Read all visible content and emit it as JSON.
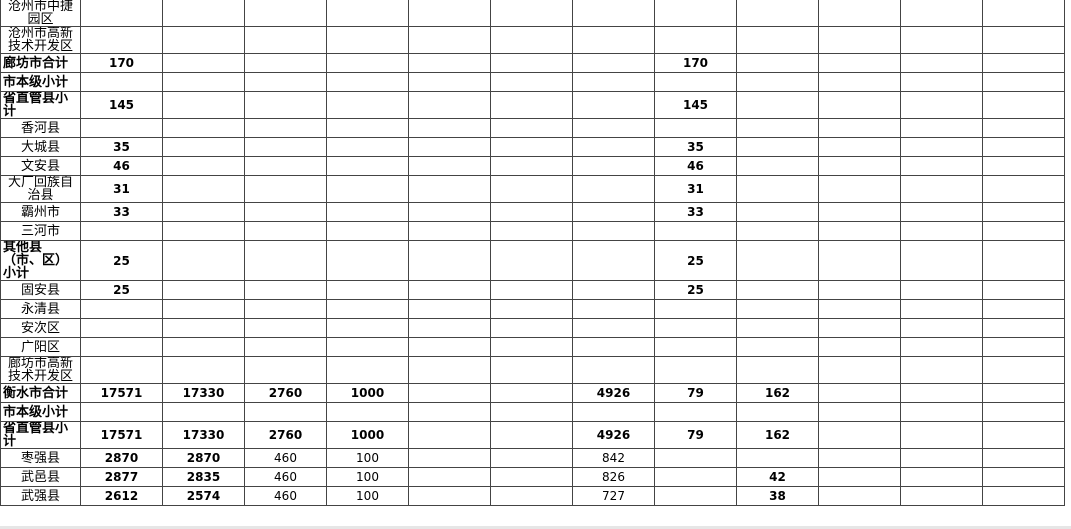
{
  "table": {
    "rows": [
      {
        "label": "沧州市中捷园区",
        "values": [
          null,
          null,
          null,
          null,
          null,
          null,
          null,
          null,
          null,
          null,
          null,
          null
        ]
      },
      {
        "label": "沧州市高新技术开发区",
        "values": [
          null,
          null,
          null,
          null,
          null,
          null,
          null,
          null,
          null,
          null,
          null,
          null
        ]
      },
      {
        "label": "廊坊市合计",
        "total": true,
        "values": [
          170,
          null,
          null,
          null,
          null,
          null,
          null,
          170,
          null,
          null,
          null,
          null
        ]
      },
      {
        "label": "市本级小计",
        "total": true,
        "values": [
          null,
          null,
          null,
          null,
          null,
          null,
          null,
          null,
          null,
          null,
          null,
          null
        ]
      },
      {
        "label": "省直管县小计",
        "total": true,
        "values": [
          145,
          null,
          null,
          null,
          null,
          null,
          null,
          145,
          null,
          null,
          null,
          null
        ]
      },
      {
        "label": "香河县",
        "values": [
          null,
          null,
          null,
          null,
          null,
          null,
          null,
          null,
          null,
          null,
          null,
          null
        ]
      },
      {
        "label": "大城县",
        "values": [
          35,
          null,
          null,
          null,
          null,
          null,
          null,
          35,
          null,
          null,
          null,
          null
        ]
      },
      {
        "label": "文安县",
        "values": [
          46,
          null,
          null,
          null,
          null,
          null,
          null,
          46,
          null,
          null,
          null,
          null
        ]
      },
      {
        "label": "大厂回族自治县",
        "values": [
          31,
          null,
          null,
          null,
          null,
          null,
          null,
          31,
          null,
          null,
          null,
          null
        ]
      },
      {
        "label": "霸州市",
        "values": [
          33,
          null,
          null,
          null,
          null,
          null,
          null,
          33,
          null,
          null,
          null,
          null
        ]
      },
      {
        "label": "三河市",
        "values": [
          null,
          null,
          null,
          null,
          null,
          null,
          null,
          null,
          null,
          null,
          null,
          null
        ]
      },
      {
        "label": "其他县（市、区）小计",
        "total": true,
        "values": [
          25,
          null,
          null,
          null,
          null,
          null,
          null,
          25,
          null,
          null,
          null,
          null
        ]
      },
      {
        "label": "固安县",
        "values": [
          25,
          null,
          null,
          null,
          null,
          null,
          null,
          25,
          null,
          null,
          null,
          null
        ]
      },
      {
        "label": "永清县",
        "values": [
          null,
          null,
          null,
          null,
          null,
          null,
          null,
          null,
          null,
          null,
          null,
          null
        ]
      },
      {
        "label": "安次区",
        "values": [
          null,
          null,
          null,
          null,
          null,
          null,
          null,
          null,
          null,
          null,
          null,
          null
        ]
      },
      {
        "label": "广阳区",
        "values": [
          null,
          null,
          null,
          null,
          null,
          null,
          null,
          null,
          null,
          null,
          null,
          null
        ]
      },
      {
        "label": "廊坊市高新技术开发区",
        "values": [
          null,
          null,
          null,
          null,
          null,
          null,
          null,
          null,
          null,
          null,
          null,
          null
        ]
      },
      {
        "label": "衡水市合计",
        "total": true,
        "values": [
          17571,
          17330,
          2760,
          1000,
          null,
          null,
          4926,
          79,
          162,
          null,
          null,
          null
        ]
      },
      {
        "label": "市本级小计",
        "total": true,
        "values": [
          null,
          null,
          null,
          null,
          null,
          null,
          null,
          null,
          null,
          null,
          null,
          null
        ]
      },
      {
        "label": "省直管县小计",
        "total": true,
        "values": [
          17571,
          17330,
          2760,
          1000,
          null,
          null,
          4926,
          79,
          162,
          null,
          null,
          null
        ]
      },
      {
        "label": "枣强县",
        "values": [
          2870,
          2870,
          460,
          100,
          null,
          null,
          842,
          null,
          null,
          null,
          null,
          null
        ]
      },
      {
        "label": "武邑县",
        "values": [
          2877,
          2835,
          460,
          100,
          null,
          null,
          826,
          null,
          42,
          null,
          null,
          null
        ]
      },
      {
        "label": "武强县",
        "values": [
          2612,
          2574,
          460,
          100,
          null,
          null,
          727,
          null,
          38,
          null,
          null,
          null
        ]
      }
    ]
  }
}
